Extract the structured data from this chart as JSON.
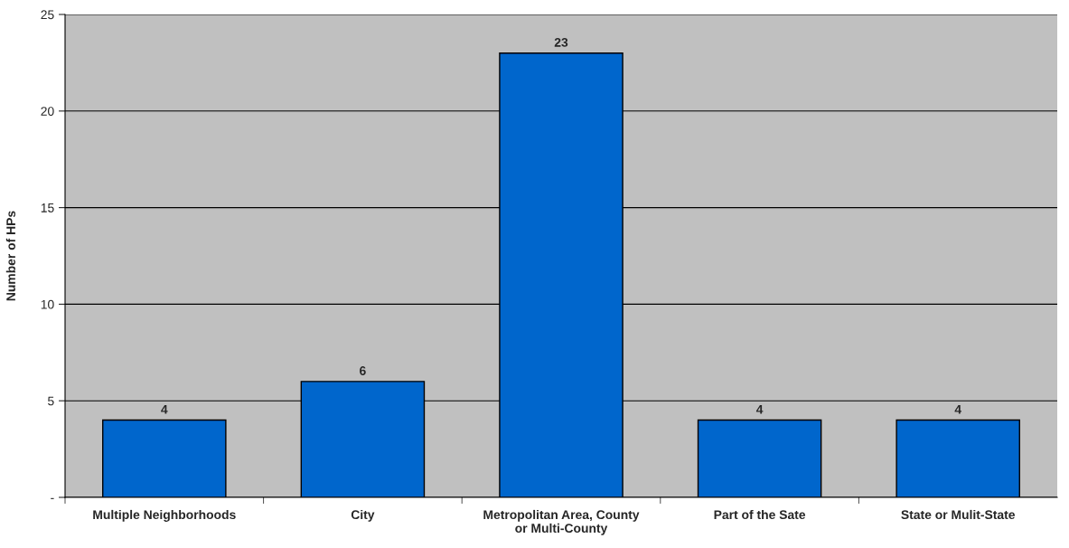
{
  "chart_data": {
    "type": "bar",
    "ylabel": "Number of HPs",
    "categories": [
      "Multiple Neighborhoods",
      "City",
      "Metropolitan Area, County\nor Multi-County",
      "Part of the Sate",
      "State or Mulit-State"
    ],
    "values": [
      4,
      6,
      23,
      4,
      4
    ],
    "color": "#0066cc",
    "ylim": [
      0,
      25
    ],
    "yticks": [
      {
        "value": 0,
        "label": "-"
      },
      5,
      10,
      15,
      20,
      25
    ],
    "grid": "y",
    "data_labels": true
  }
}
